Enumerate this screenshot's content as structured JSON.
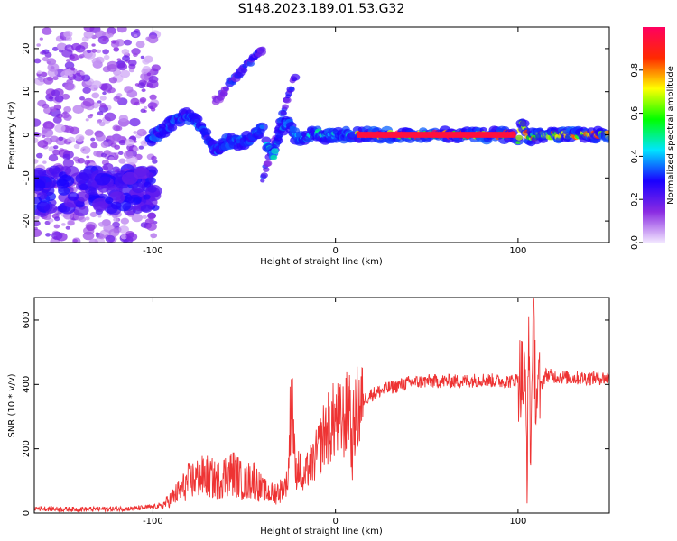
{
  "figure": {
    "title": "S148.2023.189.01.53.G32"
  },
  "chart_data": [
    {
      "type": "heatmap",
      "xlabel": "Height of straight line (km)",
      "ylabel": "Frequency (Hz)",
      "xlim": [
        -165,
        150
      ],
      "ylim": [
        -25,
        25
      ],
      "x_tick_values": [
        -100,
        0,
        100
      ],
      "x_tick_labels": [
        "-100",
        "0",
        "100"
      ],
      "y_tick_values": [
        -20,
        -10,
        0,
        10,
        20
      ],
      "y_tick_labels": [
        "-20",
        "-10",
        "0",
        "10",
        "20"
      ],
      "colorbar": {
        "label": "Normalized spectral amplitude",
        "range": [
          0,
          1
        ],
        "tick_values": [
          0.0,
          0.2,
          0.4,
          0.6,
          0.8
        ],
        "tick_labels": [
          "0.0",
          "0.2",
          "0.4",
          "0.6",
          "0.8"
        ],
        "colors": [
          "#f2e6ff",
          "#8a2be2",
          "#1a00ff",
          "#00e5ff",
          "#00ff00",
          "#ffff00",
          "#ff2a00",
          "#ff0060"
        ]
      },
      "ridges": [
        {
          "x": [
            -102,
            -95,
            -88,
            -82,
            -76,
            -72,
            -68,
            -64,
            -60,
            -56,
            -52,
            -48,
            -44,
            -40
          ],
          "y": [
            -1,
            1,
            3,
            4.5,
            3,
            0,
            -2,
            -4,
            -2,
            -1,
            -2,
            -1,
            0,
            2
          ],
          "amplitude": 0.35
        },
        {
          "x": [
            -38,
            -34,
            -30,
            -26,
            -22,
            -18,
            -14,
            -10,
            -6,
            -2,
            2,
            6,
            10
          ],
          "y": [
            -2,
            -5,
            1,
            3,
            0,
            -1,
            0,
            0.5,
            -0.5,
            0,
            -0.3,
            0.2,
            0
          ],
          "amplitude": 0.45
        },
        {
          "x": [
            12,
            30,
            50,
            70,
            90,
            98
          ],
          "y": [
            0,
            0,
            0,
            0,
            0,
            0
          ],
          "amplitude": 0.95
        },
        {
          "x": [
            100,
            102,
            104,
            106,
            110,
            120,
            130,
            140,
            150
          ],
          "y": [
            -2,
            3,
            1,
            -1,
            0,
            0,
            0,
            0,
            0
          ],
          "amplitude": 0.8
        }
      ],
      "streaks": [
        {
          "x": [
            -58,
            -40
          ],
          "y": [
            12,
            20
          ],
          "amplitude": 0.3
        },
        {
          "x": [
            -40,
            -22
          ],
          "y": [
            -10,
            14
          ],
          "amplitude": 0.3
        },
        {
          "x": [
            -66,
            -60
          ],
          "y": [
            8,
            10
          ],
          "amplitude": 0.2
        }
      ],
      "noise_region": {
        "x": [
          -165,
          -98
        ],
        "y": [
          -25,
          25
        ],
        "cluster_center_y": -13,
        "amplitude": 0.15
      }
    },
    {
      "type": "line",
      "xlabel": "Height of straight line (km)",
      "ylabel": "SNR (10 * v/v)",
      "xlim": [
        -165,
        150
      ],
      "ylim": [
        0,
        670
      ],
      "x_tick_values": [
        -100,
        0,
        100
      ],
      "x_tick_labels": [
        "-100",
        "0",
        "100"
      ],
      "y_tick_values": [
        0,
        200,
        400,
        600
      ],
      "y_tick_labels": [
        "0",
        "200",
        "400",
        "600"
      ],
      "color": "#ee3333",
      "series": [
        {
          "x": [
            -165,
            -150,
            -130,
            -110,
            -95,
            -90,
            -85,
            -80,
            -75,
            -70,
            -65,
            -60,
            -55,
            -50,
            -45,
            -40,
            -35,
            -30,
            -26,
            -24,
            -22,
            -20,
            -18,
            -15,
            -12,
            -9,
            -6,
            -3,
            0,
            3,
            6,
            8,
            9,
            10,
            12,
            15,
            20,
            25,
            30,
            40,
            50,
            60,
            70,
            80,
            90,
            98,
            102,
            104,
            105,
            106,
            107,
            108,
            110,
            115,
            120,
            130,
            140,
            150
          ],
          "y": [
            15,
            12,
            12,
            14,
            22,
            45,
            70,
            100,
            110,
            115,
            100,
            120,
            125,
            90,
            110,
            70,
            60,
            70,
            100,
            420,
            120,
            150,
            90,
            140,
            160,
            200,
            250,
            270,
            290,
            280,
            300,
            360,
            150,
            280,
            320,
            350,
            370,
            380,
            390,
            405,
            410,
            410,
            410,
            415,
            410,
            410,
            430,
            380,
            150,
            560,
            130,
            620,
            360,
            430,
            425,
            420,
            420,
            420
          ]
        }
      ]
    }
  ]
}
